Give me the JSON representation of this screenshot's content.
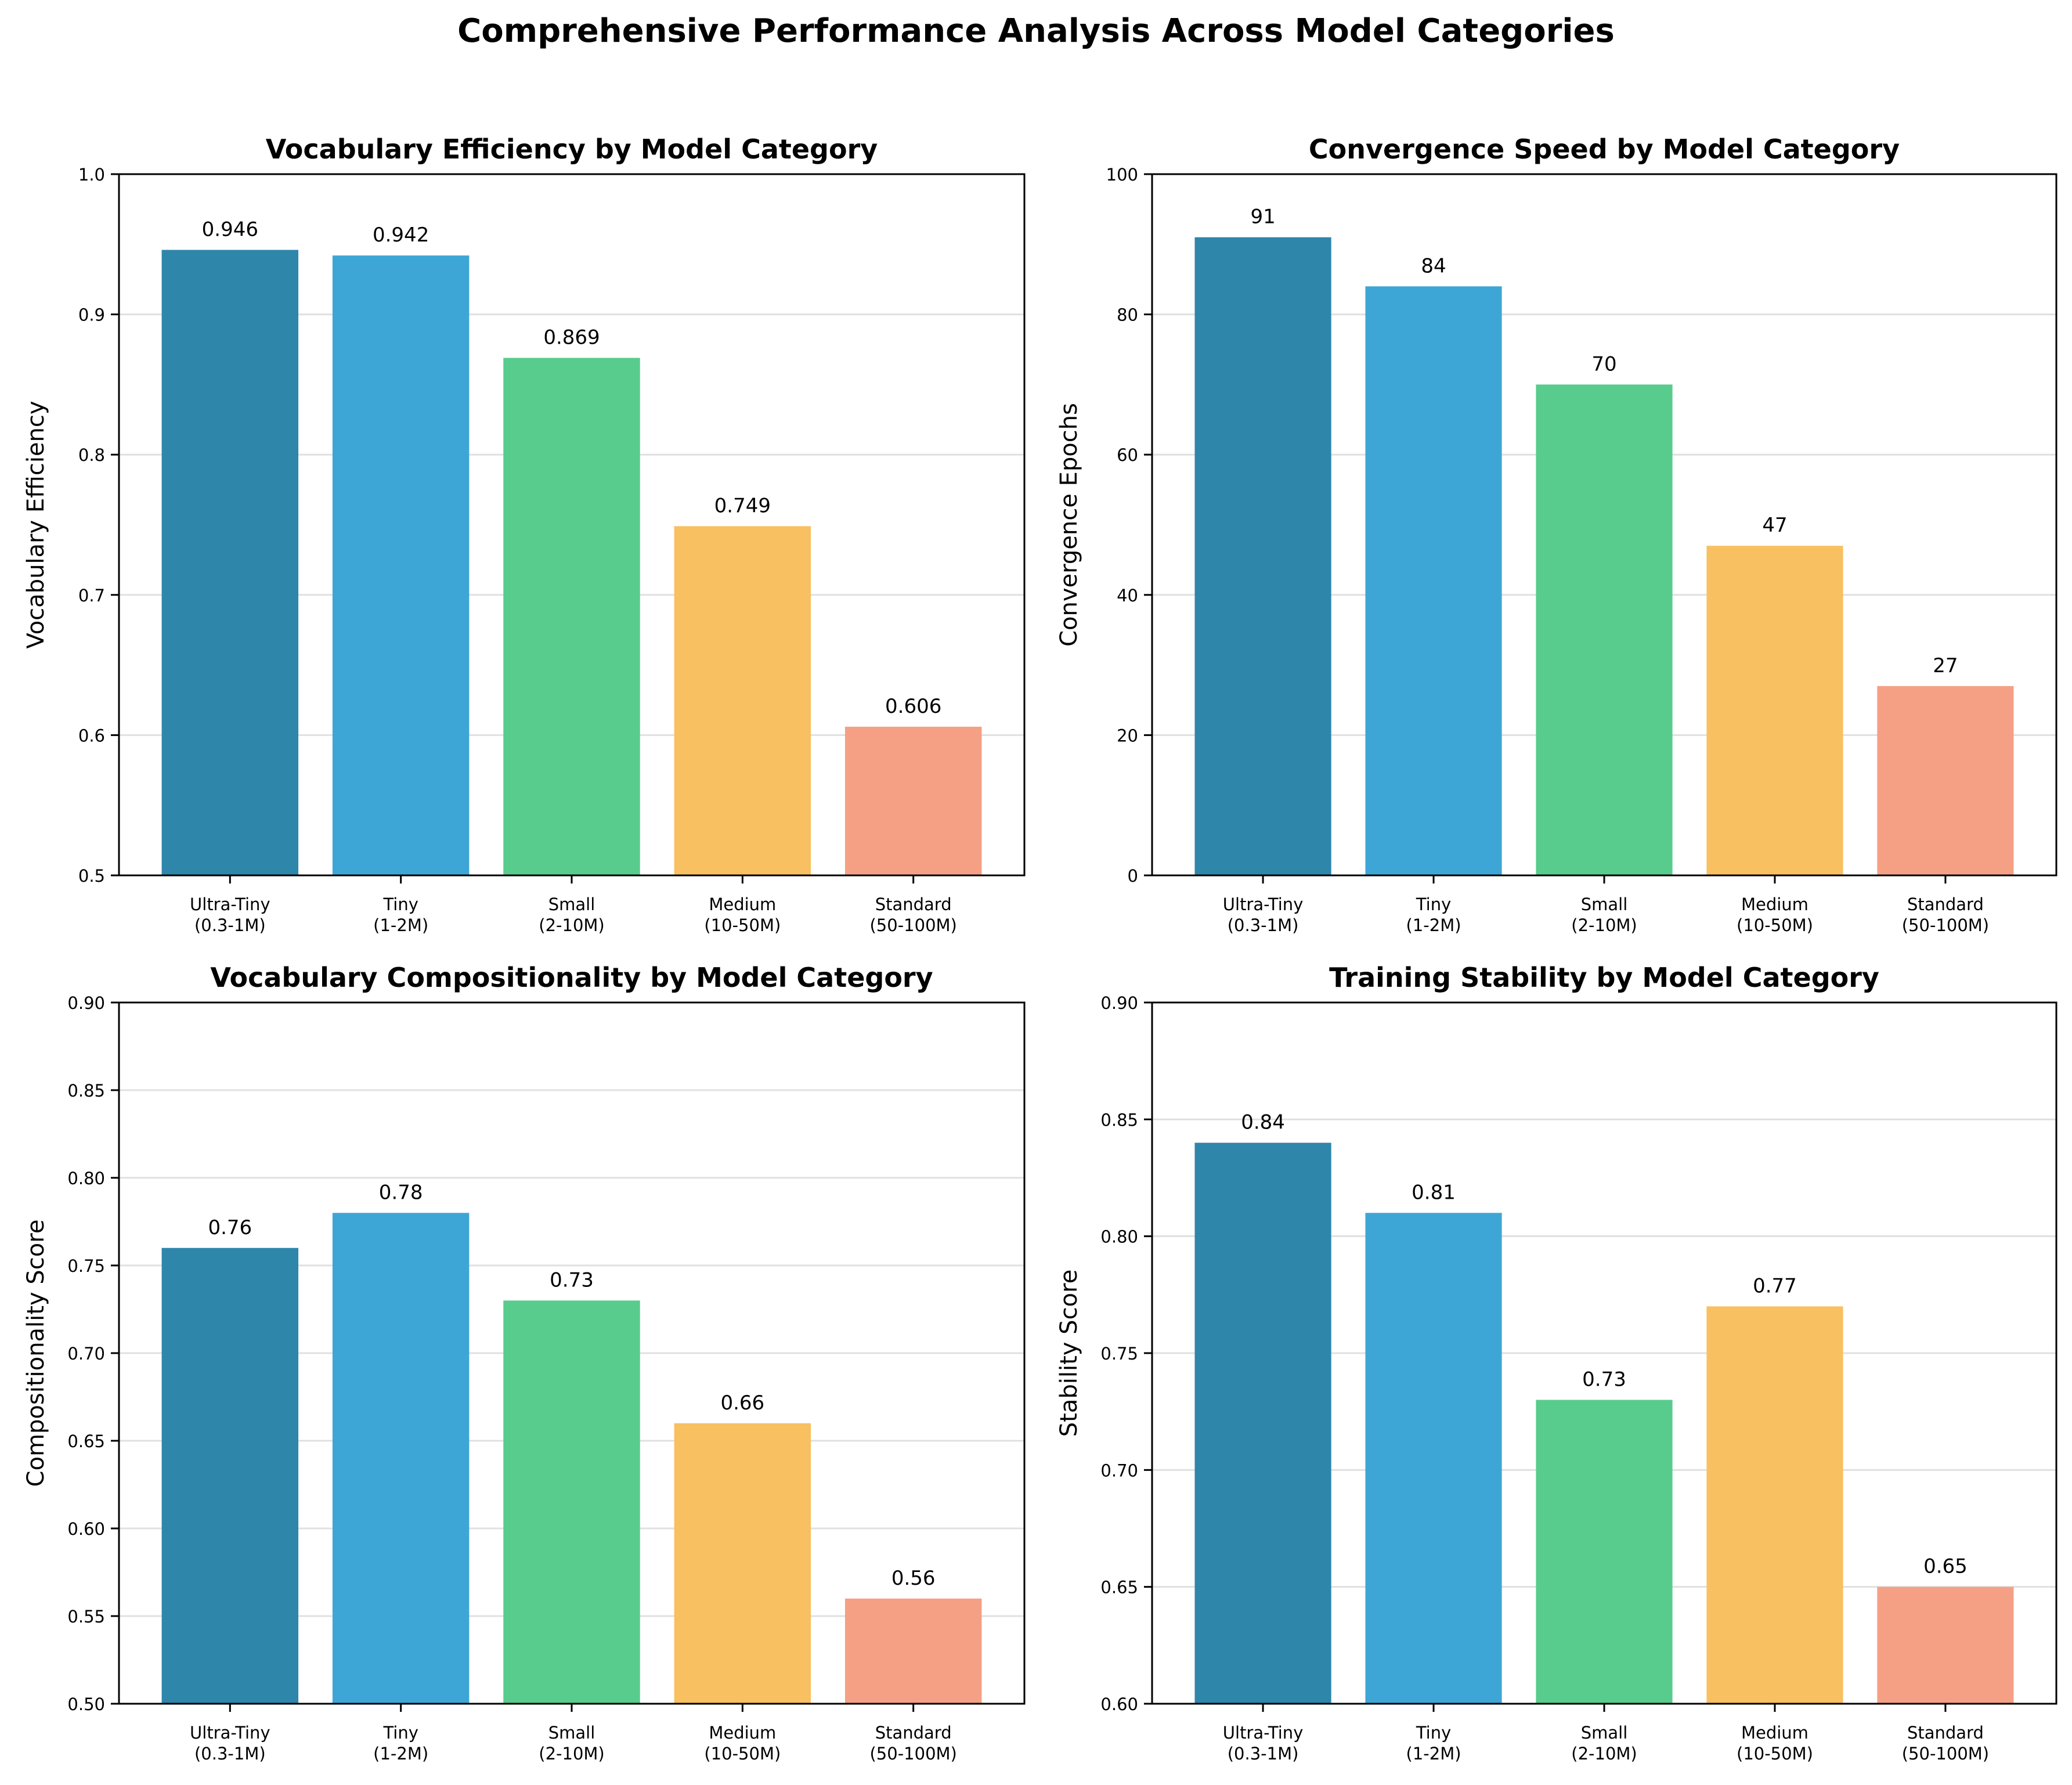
{
  "figure_title": "Comprehensive Performance Analysis Across Model Categories",
  "colors": {
    "ultra_tiny": "#2E86AB",
    "tiny": "#3EA6D6",
    "small": "#58CC8C",
    "medium": "#F8C060",
    "standard": "#F5A085",
    "grid": "#e0e0e0",
    "axis": "#000000"
  },
  "chart_data": [
    {
      "type": "bar",
      "title": "Vocabulary Efficiency by Model Category",
      "xlabel": "",
      "ylabel": "Vocabulary Efficiency",
      "categories": [
        "Ultra-Tiny\n(0.3-1M)",
        "Tiny\n(1-2M)",
        "Small\n(2-10M)",
        "Medium\n(10-50M)",
        "Standard\n(50-100M)"
      ],
      "values": [
        0.946,
        0.942,
        0.869,
        0.749,
        0.606
      ],
      "value_labels": [
        "0.946",
        "0.942",
        "0.869",
        "0.749",
        "0.606"
      ],
      "ylim": [
        0.5,
        1.0
      ],
      "yticks": [
        0.5,
        0.6,
        0.7,
        0.8,
        0.9,
        1.0
      ],
      "ytick_labels": [
        "0.5",
        "0.6",
        "0.7",
        "0.8",
        "0.9",
        "1.0"
      ],
      "grid": "y"
    },
    {
      "type": "bar",
      "title": "Convergence Speed by Model Category",
      "xlabel": "",
      "ylabel": "Convergence Epochs",
      "categories": [
        "Ultra-Tiny\n(0.3-1M)",
        "Tiny\n(1-2M)",
        "Small\n(2-10M)",
        "Medium\n(10-50M)",
        "Standard\n(50-100M)"
      ],
      "values": [
        91,
        84,
        70,
        47,
        27
      ],
      "value_labels": [
        "91",
        "84",
        "70",
        "47",
        "27"
      ],
      "ylim": [
        0,
        100
      ],
      "yticks": [
        0,
        20,
        40,
        60,
        80,
        100
      ],
      "ytick_labels": [
        "0",
        "20",
        "40",
        "60",
        "80",
        "100"
      ],
      "grid": "y"
    },
    {
      "type": "bar",
      "title": "Vocabulary Compositionality by Model Category",
      "xlabel": "",
      "ylabel": "Compositionality Score",
      "categories": [
        "Ultra-Tiny\n(0.3-1M)",
        "Tiny\n(1-2M)",
        "Small\n(2-10M)",
        "Medium\n(10-50M)",
        "Standard\n(50-100M)"
      ],
      "values": [
        0.76,
        0.78,
        0.73,
        0.66,
        0.56
      ],
      "value_labels": [
        "0.76",
        "0.78",
        "0.73",
        "0.66",
        "0.56"
      ],
      "ylim": [
        0.5,
        0.9
      ],
      "yticks": [
        0.5,
        0.55,
        0.6,
        0.65,
        0.7,
        0.75,
        0.8,
        0.85,
        0.9
      ],
      "ytick_labels": [
        "0.50",
        "0.55",
        "0.60",
        "0.65",
        "0.70",
        "0.75",
        "0.80",
        "0.85",
        "0.90"
      ],
      "grid": "y"
    },
    {
      "type": "bar",
      "title": "Training Stability by Model Category",
      "xlabel": "",
      "ylabel": "Stability Score",
      "categories": [
        "Ultra-Tiny\n(0.3-1M)",
        "Tiny\n(1-2M)",
        "Small\n(2-10M)",
        "Medium\n(10-50M)",
        "Standard\n(50-100M)"
      ],
      "values": [
        0.84,
        0.81,
        0.73,
        0.77,
        0.65
      ],
      "value_labels": [
        "0.84",
        "0.81",
        "0.73",
        "0.77",
        "0.65"
      ],
      "ylim": [
        0.6,
        0.9
      ],
      "yticks": [
        0.6,
        0.65,
        0.7,
        0.75,
        0.8,
        0.85,
        0.9
      ],
      "ytick_labels": [
        "0.60",
        "0.65",
        "0.70",
        "0.75",
        "0.80",
        "0.85",
        "0.90"
      ],
      "grid": "y"
    }
  ]
}
